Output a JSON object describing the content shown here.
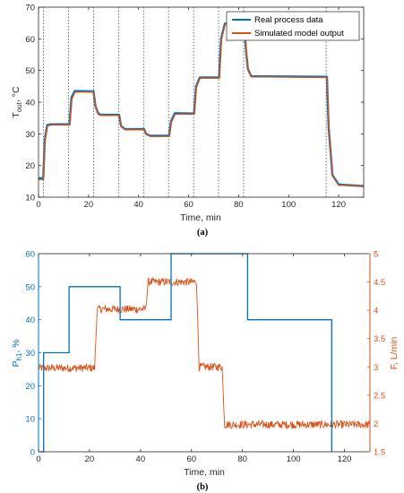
{
  "chart_data": [
    {
      "type": "line",
      "panel_caption": "(a)",
      "xlabel": "Time, min",
      "ylabel": "T",
      "ylabel_sub": "out",
      "ylabel_unit": ", °C",
      "xlim": [
        0,
        130
      ],
      "ylim": [
        10,
        70
      ],
      "xticks": [
        "0",
        "20",
        "40",
        "60",
        "80",
        "100",
        "120"
      ],
      "yticks": [
        "10",
        "20",
        "30",
        "40",
        "50",
        "60",
        "70"
      ],
      "grid": false,
      "legend_position": "top-right",
      "vertical_dotted_lines": [
        2,
        12,
        22,
        32,
        42,
        52,
        62,
        72,
        82,
        115
      ],
      "series": [
        {
          "name": "Real process data",
          "color": "#0072BD",
          "x": [
            0,
            1.9,
            2.5,
            3.5,
            5,
            12.4,
            13.2,
            14.5,
            22,
            22.7,
            23.8,
            25,
            32.2,
            33,
            34.5,
            42.2,
            43,
            44.5,
            52.2,
            53,
            54.5,
            62.2,
            63,
            64.5,
            72.2,
            73,
            74.5,
            82.2,
            83,
            83.7,
            85,
            115.3,
            116,
            117.5,
            120,
            130
          ],
          "y": [
            16,
            16,
            28,
            32.8,
            33,
            33,
            41.5,
            43.5,
            43.4,
            39,
            36.5,
            36,
            36,
            32.5,
            31.5,
            31.5,
            30,
            29.4,
            29.4,
            34,
            36.5,
            36.4,
            45,
            47.8,
            47.8,
            60,
            64.8,
            64.8,
            56,
            50.5,
            48.2,
            48,
            32,
            17,
            14,
            13.5
          ]
        },
        {
          "name": "Simulated model output",
          "color": "#D95319",
          "x": [
            0,
            1.9,
            2.6,
            3.6,
            5,
            12.5,
            13.3,
            14.6,
            22.1,
            22.8,
            23.9,
            25,
            32.3,
            33.1,
            34.6,
            42.3,
            43.1,
            44.6,
            52.3,
            53.1,
            54.6,
            62.3,
            63.1,
            64.6,
            72.3,
            73.1,
            74.6,
            82.3,
            83.1,
            83.8,
            85,
            115.4,
            116.1,
            117.6,
            120,
            130
          ],
          "y": [
            15.6,
            15.6,
            27.5,
            32.5,
            32.8,
            32.8,
            41,
            43.2,
            43.2,
            38.6,
            36.2,
            35.8,
            35.8,
            32.2,
            31.3,
            31.3,
            29.8,
            29.2,
            29.2,
            33.6,
            36.2,
            36.2,
            44.6,
            47.6,
            47.6,
            59.6,
            64.6,
            64.6,
            55.6,
            50.2,
            48,
            47.8,
            31.5,
            16.6,
            13.8,
            13.4
          ]
        }
      ]
    },
    {
      "type": "line",
      "panel_caption": "(b)",
      "xlabel": "Time, min",
      "ylabel_left": "P",
      "ylabel_left_sub": "h1",
      "ylabel_left_unit": ", %",
      "ylabel_right": "F, L/min",
      "xlim": [
        0,
        130
      ],
      "ylim_left": [
        0,
        60
      ],
      "ylim_right": [
        1.5,
        5
      ],
      "xticks": [
        "0",
        "20",
        "40",
        "60",
        "80",
        "100",
        "120"
      ],
      "yticks_left": [
        "0",
        "10",
        "20",
        "30",
        "40",
        "50",
        "60"
      ],
      "yticks_right": [
        "1.5",
        "2",
        "2.5",
        "3",
        "3.5",
        "4",
        "4.5",
        "5"
      ],
      "grid": false,
      "series": [
        {
          "axis": "left",
          "color": "#0072BD",
          "x": [
            0,
            2,
            2,
            12,
            12,
            32,
            32,
            52,
            52,
            82,
            82,
            115,
            115
          ],
          "y": [
            0,
            0,
            30,
            30,
            50,
            50,
            40,
            40,
            60,
            60,
            40,
            40,
            0
          ]
        },
        {
          "axis": "right",
          "color": "#D95319",
          "noisy": true,
          "x": [
            0,
            22,
            23,
            42,
            43,
            62,
            63,
            72,
            73,
            130
          ],
          "y": [
            2.98,
            2.98,
            4.02,
            4.02,
            4.5,
            4.5,
            3.0,
            3.0,
            1.98,
            1.98
          ],
          "noise_amplitude": 0.07
        }
      ]
    }
  ],
  "legend": {
    "items": [
      "Real process data",
      "Simulated model output"
    ]
  },
  "colors": {
    "blue": "#0072BD",
    "orange": "#D95319",
    "axis": "#262626",
    "dotted_line": "#444444"
  }
}
